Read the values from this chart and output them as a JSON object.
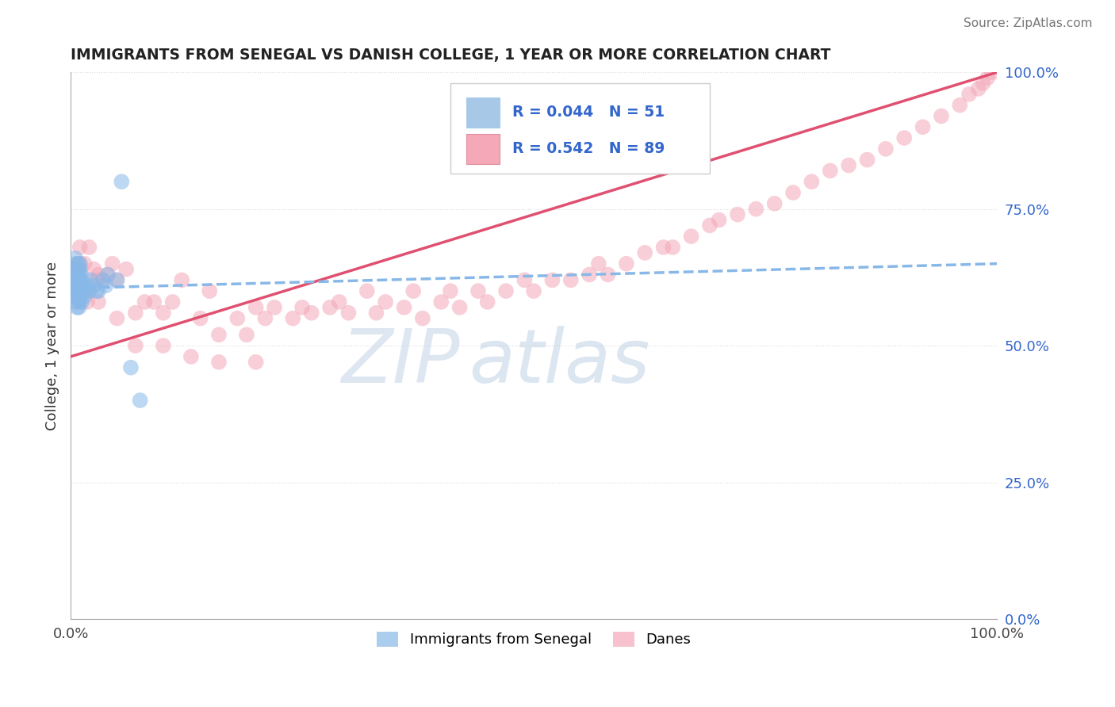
{
  "title": "IMMIGRANTS FROM SENEGAL VS DANISH COLLEGE, 1 YEAR OR MORE CORRELATION CHART",
  "source_text": "Source: ZipAtlas.com",
  "ylabel": "College, 1 year or more",
  "legend_blue_label": "R = 0.044   N = 51",
  "legend_pink_label": "R = 0.542   N = 89",
  "legend_blue_color": "#a8c8e8",
  "legend_pink_color": "#f4a8b8",
  "legend_text_color": "#3366cc",
  "dot_blue_color": "#88b8e8",
  "dot_pink_color": "#f4a8b8",
  "line_blue_color": "#88b8e8",
  "line_pink_color": "#e05070",
  "grid_color": "#dddddd",
  "background_color": "#ffffff",
  "blue_x": [
    0.005,
    0.005,
    0.005,
    0.005,
    0.005,
    0.006,
    0.006,
    0.006,
    0.006,
    0.007,
    0.007,
    0.007,
    0.007,
    0.007,
    0.008,
    0.008,
    0.008,
    0.008,
    0.009,
    0.009,
    0.009,
    0.009,
    0.009,
    0.01,
    0.01,
    0.01,
    0.01,
    0.01,
    0.01,
    0.01,
    0.011,
    0.011,
    0.012,
    0.012,
    0.013,
    0.013,
    0.015,
    0.016,
    0.018,
    0.02,
    0.022,
    0.025,
    0.028,
    0.03,
    0.035,
    0.038,
    0.04,
    0.05,
    0.055,
    0.065,
    0.075
  ],
  "blue_y": [
    0.62,
    0.64,
    0.66,
    0.59,
    0.58,
    0.65,
    0.63,
    0.61,
    0.6,
    0.64,
    0.62,
    0.6,
    0.59,
    0.57,
    0.65,
    0.63,
    0.61,
    0.59,
    0.64,
    0.62,
    0.6,
    0.59,
    0.57,
    0.65,
    0.64,
    0.62,
    0.61,
    0.6,
    0.59,
    0.58,
    0.63,
    0.61,
    0.6,
    0.58,
    0.62,
    0.6,
    0.59,
    0.6,
    0.61,
    0.6,
    0.62,
    0.61,
    0.6,
    0.6,
    0.62,
    0.61,
    0.63,
    0.62,
    0.8,
    0.46,
    0.4
  ],
  "pink_x": [
    0.005,
    0.006,
    0.008,
    0.01,
    0.012,
    0.015,
    0.018,
    0.02,
    0.025,
    0.028,
    0.03,
    0.035,
    0.04,
    0.045,
    0.05,
    0.06,
    0.07,
    0.08,
    0.09,
    0.1,
    0.11,
    0.12,
    0.14,
    0.15,
    0.16,
    0.18,
    0.19,
    0.2,
    0.21,
    0.22,
    0.24,
    0.25,
    0.26,
    0.28,
    0.29,
    0.3,
    0.32,
    0.33,
    0.34,
    0.36,
    0.37,
    0.38,
    0.4,
    0.41,
    0.42,
    0.44,
    0.45,
    0.47,
    0.49,
    0.5,
    0.52,
    0.54,
    0.56,
    0.57,
    0.58,
    0.6,
    0.62,
    0.64,
    0.65,
    0.67,
    0.69,
    0.7,
    0.72,
    0.74,
    0.76,
    0.78,
    0.8,
    0.82,
    0.84,
    0.86,
    0.88,
    0.9,
    0.92,
    0.94,
    0.96,
    0.97,
    0.98,
    0.985,
    0.99,
    0.995,
    0.01,
    0.02,
    0.03,
    0.05,
    0.07,
    0.1,
    0.13,
    0.16,
    0.2
  ],
  "pink_y": [
    0.62,
    0.64,
    0.65,
    0.68,
    0.6,
    0.65,
    0.58,
    0.68,
    0.64,
    0.62,
    0.63,
    0.62,
    0.63,
    0.65,
    0.62,
    0.64,
    0.56,
    0.58,
    0.58,
    0.56,
    0.58,
    0.62,
    0.55,
    0.6,
    0.52,
    0.55,
    0.52,
    0.57,
    0.55,
    0.57,
    0.55,
    0.57,
    0.56,
    0.57,
    0.58,
    0.56,
    0.6,
    0.56,
    0.58,
    0.57,
    0.6,
    0.55,
    0.58,
    0.6,
    0.57,
    0.6,
    0.58,
    0.6,
    0.62,
    0.6,
    0.62,
    0.62,
    0.63,
    0.65,
    0.63,
    0.65,
    0.67,
    0.68,
    0.68,
    0.7,
    0.72,
    0.73,
    0.74,
    0.75,
    0.76,
    0.78,
    0.8,
    0.82,
    0.83,
    0.84,
    0.86,
    0.88,
    0.9,
    0.92,
    0.94,
    0.96,
    0.97,
    0.98,
    0.99,
    1.0,
    0.65,
    0.6,
    0.58,
    0.55,
    0.5,
    0.5,
    0.48,
    0.47,
    0.47
  ]
}
